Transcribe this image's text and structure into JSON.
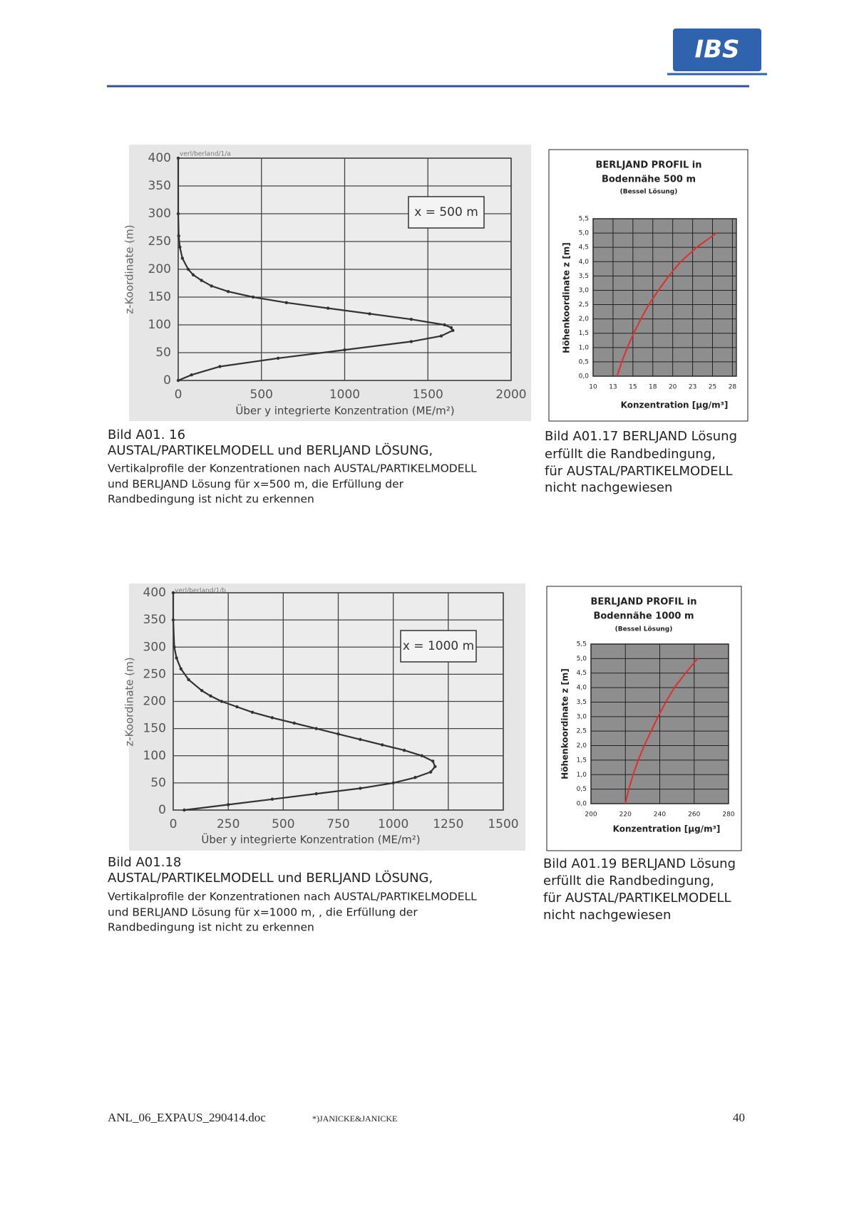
{
  "header": {
    "logo": "IBS"
  },
  "chart_data": [
    {
      "type": "line",
      "source_label": "verl/berland/1/a",
      "annotation": "x = 500 m",
      "xlabel": "Über y integrierte Konzentration (ME/m²)",
      "ylabel": "z-Koordinate (m)",
      "xlim": [
        0,
        2000
      ],
      "xticks": [
        0,
        500,
        1000,
        1500,
        2000
      ],
      "ylim": [
        0,
        400
      ],
      "yticks": [
        0,
        50,
        100,
        150,
        200,
        250,
        300,
        350,
        400
      ],
      "grid": true,
      "markers": true,
      "color": "#333333",
      "background": "#ececec",
      "x": [
        0,
        80,
        250,
        600,
        1000,
        1400,
        1580,
        1650,
        1640,
        1600,
        1400,
        1150,
        900,
        650,
        450,
        300,
        200,
        140,
        90,
        60,
        25,
        10,
        3,
        0,
        0
      ],
      "values": [
        0,
        10,
        25,
        40,
        55,
        70,
        80,
        90,
        95,
        100,
        110,
        120,
        130,
        140,
        150,
        160,
        170,
        180,
        190,
        200,
        220,
        240,
        260,
        300,
        400
      ],
      "caption": [
        "Bild A01. 16",
        "AUSTAL/PARTIKELMODELL und  BERLJAND LÖSUNG,",
        "Vertikalprofile der Konzentrationen nach AUSTAL/PARTIKELMODELL",
        "und  BERLJAND Lösung für x=500 m, die Erfüllung der",
        "Randbedingung ist nicht zu erkennen"
      ]
    },
    {
      "type": "line",
      "title": [
        "BERLJAND PROFIL in",
        "Bodennähe 500 m",
        "(Bessel Lösung)"
      ],
      "xlabel": "Konzentration [µg/m³]",
      "ylabel": "Höhenkoordinate z [m]",
      "xlim": [
        10,
        28
      ],
      "xticks": [
        10,
        {
          "value": 12.5,
          "label": "13"
        },
        15,
        {
          "value": 17.5,
          "label": "18"
        },
        20,
        {
          "value": 22.5,
          "label": "23"
        },
        25,
        {
          "value": 27.5,
          "label": "28"
        }
      ],
      "ylim": [
        0,
        5.5
      ],
      "yticks": [
        {
          "value": 0,
          "label": "0,0"
        },
        {
          "value": 0.5,
          "label": "0,5"
        },
        {
          "value": 1,
          "label": "1,0"
        },
        {
          "value": 1.5,
          "label": "1,5"
        },
        {
          "value": 2,
          "label": "2,0"
        },
        {
          "value": 2.5,
          "label": "2,5"
        },
        {
          "value": 3,
          "label": "3,0"
        },
        {
          "value": 3.5,
          "label": "3,5"
        },
        {
          "value": 4,
          "label": "4,0"
        },
        {
          "value": 4.5,
          "label": "4,5"
        },
        {
          "value": 5,
          "label": "5,0"
        },
        {
          "value": 5.5,
          "label": "5,5"
        }
      ],
      "grid": true,
      "markers": false,
      "color": "#e0302a",
      "background": "#8e8e8e",
      "x": [
        13,
        13.6,
        14.3,
        15.1,
        16,
        17,
        18.2,
        19.5,
        21,
        23,
        25.5
      ],
      "values": [
        0,
        0.5,
        1,
        1.5,
        2,
        2.5,
        3,
        3.5,
        4,
        4.5,
        5
      ],
      "caption": [
        "Bild A01.17  BERLJAND Lösung",
        "erfüllt die Randbedingung,",
        "für AUSTAL/PARTIKELMODELL",
        "nicht nachgewiesen"
      ]
    },
    {
      "type": "line",
      "source_label": "verl/berland/1/b",
      "annotation": "x = 1000 m",
      "xlabel": "Über y integrierte Konzentration (ME/m²)",
      "ylabel": "z-Koordinate (m)",
      "xlim": [
        0,
        1500
      ],
      "xticks": [
        0,
        250,
        500,
        750,
        1000,
        1250,
        1500
      ],
      "ylim": [
        0,
        400
      ],
      "yticks": [
        0,
        50,
        100,
        150,
        200,
        250,
        300,
        350,
        400
      ],
      "grid": true,
      "markers": true,
      "color": "#333333",
      "background": "#ececec",
      "x": [
        50,
        250,
        450,
        650,
        850,
        1000,
        1100,
        1170,
        1190,
        1180,
        1130,
        1050,
        950,
        850,
        750,
        650,
        550,
        450,
        360,
        290,
        220,
        170,
        130,
        70,
        35,
        15,
        5,
        0,
        0
      ],
      "values": [
        0,
        10,
        20,
        30,
        40,
        50,
        60,
        70,
        80,
        90,
        100,
        110,
        120,
        130,
        140,
        150,
        160,
        170,
        180,
        190,
        200,
        210,
        220,
        240,
        260,
        280,
        300,
        350,
        400
      ],
      "caption": [
        "Bild A01.18",
        "AUSTAL/PARTIKELMODELL und  BERLJAND LÖSUNG,",
        "Vertikalprofile der Konzentrationen nach AUSTAL/PARTIKELMODELL",
        "und  BERLJAND Lösung für x=1000 m, , die Erfüllung der",
        "Randbedingung ist nicht zu erkennen"
      ]
    },
    {
      "type": "line",
      "title": [
        "BERLJAND PROFIL in",
        "Bodennähe 1000 m",
        "(Bessel Lösung)"
      ],
      "xlabel": "Konzentration [µg/m³]",
      "ylabel": "Höhenkoordinate z [m]",
      "xlim": [
        200,
        280
      ],
      "xticks": [
        200,
        220,
        240,
        260,
        280
      ],
      "ylim": [
        0,
        5.5
      ],
      "yticks": [
        {
          "value": 0,
          "label": "0,0"
        },
        {
          "value": 0.5,
          "label": "0,5"
        },
        {
          "value": 1,
          "label": "1,0"
        },
        {
          "value": 1.5,
          "label": "1,5"
        },
        {
          "value": 2,
          "label": "2,0"
        },
        {
          "value": 2.5,
          "label": "2,5"
        },
        {
          "value": 3,
          "label": "3,0"
        },
        {
          "value": 3.5,
          "label": "3,5"
        },
        {
          "value": 4,
          "label": "4,0"
        },
        {
          "value": 4.5,
          "label": "4,5"
        },
        {
          "value": 5,
          "label": "5,0"
        },
        {
          "value": 5.5,
          "label": "5,5"
        }
      ],
      "grid": true,
      "markers": false,
      "color": "#e0302a",
      "background": "#8e8e8e",
      "x": [
        220,
        222,
        224.5,
        227.5,
        231,
        235,
        239,
        243.5,
        248.5,
        255,
        262
      ],
      "values": [
        0,
        0.5,
        1,
        1.5,
        2,
        2.5,
        3,
        3.5,
        4,
        4.5,
        5
      ],
      "caption": [
        "Bild A01.19  BERLJAND Lösung",
        "erfüllt die Randbedingung,",
        "für AUSTAL/PARTIKELMODELL",
        "nicht nachgewiesen"
      ]
    }
  ],
  "footer": {
    "file": "ANL_06_EXPAUS_290414.doc",
    "author": "*)JANICKE&JANICKE",
    "page": 40
  }
}
